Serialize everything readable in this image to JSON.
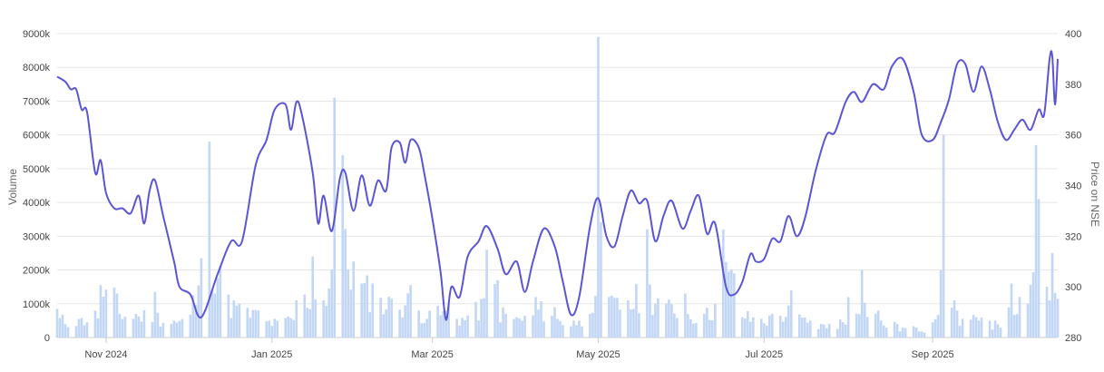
{
  "chart_data": {
    "type": "bar+line",
    "title": "",
    "colors": {
      "volume": "#c2d6f6",
      "price": "#5b55d6",
      "grid": "#e6e6e6"
    },
    "left_axis": {
      "label": "Volume",
      "ylim": [
        0,
        9000000
      ],
      "ticks": [
        0,
        1000000,
        2000000,
        3000000,
        4000000,
        5000000,
        6000000,
        7000000,
        8000000,
        9000000
      ],
      "tick_labels": [
        "0",
        "1000k",
        "2000k",
        "3000k",
        "4000k",
        "5000k",
        "6000k",
        "7000k",
        "8000k",
        "9000k"
      ]
    },
    "right_axis": {
      "label": "Price on NSE",
      "ylim": [
        280,
        400
      ],
      "ticks": [
        280,
        300,
        320,
        340,
        360,
        380,
        400
      ],
      "tick_labels": [
        "280",
        "300",
        "320",
        "340",
        "360",
        "380",
        "400"
      ]
    },
    "x_axis": {
      "range": [
        "2024-10-14",
        "2025-10-17"
      ],
      "ticks": [
        {
          "date": "2024-11-01",
          "label": "Nov 2024"
        },
        {
          "date": "2025-01-01",
          "label": "Jan 2025"
        },
        {
          "date": "2025-03-01",
          "label": "Mar 2025"
        },
        {
          "date": "2025-05-01",
          "label": "May 2025"
        },
        {
          "date": "2025-07-01",
          "label": "Jul 2025"
        },
        {
          "date": "2025-09-01",
          "label": "Sep 2025"
        }
      ]
    },
    "grid": true,
    "legend": "none",
    "series": [
      {
        "kind": "volume",
        "axis": "left",
        "anchors": [
          [
            "2024-10-14",
            850000
          ],
          [
            "2024-10-22",
            550000
          ],
          [
            "2024-10-30",
            1550000
          ],
          [
            "2024-11-05",
            1300000
          ],
          [
            "2024-11-12",
            700000
          ],
          [
            "2024-11-19",
            1350000
          ],
          [
            "2024-11-26",
            500000
          ],
          [
            "2024-12-03",
            1250000
          ],
          [
            "2024-12-06",
            2350000
          ],
          [
            "2024-12-09",
            5800000
          ],
          [
            "2024-12-13",
            2100000
          ],
          [
            "2024-12-20",
            1000000
          ],
          [
            "2024-12-27",
            800000
          ],
          [
            "2025-01-03",
            500000
          ],
          [
            "2025-01-10",
            1100000
          ],
          [
            "2025-01-16",
            2400000
          ],
          [
            "2025-01-20",
            1100000
          ],
          [
            "2025-01-24",
            7100000
          ],
          [
            "2025-01-27",
            5400000
          ],
          [
            "2025-01-31",
            2250000
          ],
          [
            "2025-02-07",
            1600000
          ],
          [
            "2025-02-14",
            1150000
          ],
          [
            "2025-02-21",
            1550000
          ],
          [
            "2025-02-28",
            800000
          ],
          [
            "2025-03-07",
            1000000
          ],
          [
            "2025-03-14",
            650000
          ],
          [
            "2025-03-21",
            2600000
          ],
          [
            "2025-03-25",
            1700000
          ],
          [
            "2025-04-01",
            600000
          ],
          [
            "2025-04-08",
            1200000
          ],
          [
            "2025-04-15",
            900000
          ],
          [
            "2025-04-22",
            500000
          ],
          [
            "2025-04-28",
            700000
          ],
          [
            "2025-05-01",
            8900000
          ],
          [
            "2025-05-05",
            1200000
          ],
          [
            "2025-05-12",
            1100000
          ],
          [
            "2025-05-19",
            3200000
          ],
          [
            "2025-05-26",
            1000000
          ],
          [
            "2025-06-02",
            1300000
          ],
          [
            "2025-06-09",
            700000
          ],
          [
            "2025-06-16",
            3200000
          ],
          [
            "2025-06-20",
            1900000
          ],
          [
            "2025-06-27",
            600000
          ],
          [
            "2025-07-04",
            700000
          ],
          [
            "2025-07-11",
            1400000
          ],
          [
            "2025-07-18",
            500000
          ],
          [
            "2025-07-25",
            400000
          ],
          [
            "2025-08-01",
            1200000
          ],
          [
            "2025-08-06",
            2000000
          ],
          [
            "2025-08-12",
            800000
          ],
          [
            "2025-08-19",
            400000
          ],
          [
            "2025-08-26",
            300000
          ],
          [
            "2025-09-01",
            450000
          ],
          [
            "2025-09-05",
            6000000
          ],
          [
            "2025-09-10",
            800000
          ],
          [
            "2025-09-17",
            600000
          ],
          [
            "2025-09-24",
            500000
          ],
          [
            "2025-09-30",
            1600000
          ],
          [
            "2025-10-06",
            1000000
          ],
          [
            "2025-10-09",
            5700000
          ],
          [
            "2025-10-10",
            4100000
          ],
          [
            "2025-10-13",
            1500000
          ],
          [
            "2025-10-15",
            2500000
          ],
          [
            "2025-10-17",
            1150000
          ]
        ]
      },
      {
        "kind": "price",
        "axis": "right",
        "points": [
          [
            "2024-10-14",
            383
          ],
          [
            "2024-10-17",
            381
          ],
          [
            "2024-10-19",
            378
          ],
          [
            "2024-10-21",
            378
          ],
          [
            "2024-10-23",
            370
          ],
          [
            "2024-10-25",
            369
          ],
          [
            "2024-10-28",
            345
          ],
          [
            "2024-10-30",
            350
          ],
          [
            "2024-11-01",
            337
          ],
          [
            "2024-11-04",
            331
          ],
          [
            "2024-11-07",
            331
          ],
          [
            "2024-11-10",
            329
          ],
          [
            "2024-11-13",
            336
          ],
          [
            "2024-11-15",
            325
          ],
          [
            "2024-11-17",
            338
          ],
          [
            "2024-11-19",
            342
          ],
          [
            "2024-11-22",
            328
          ],
          [
            "2024-11-26",
            310
          ],
          [
            "2024-11-28",
            300
          ],
          [
            "2024-12-02",
            297
          ],
          [
            "2024-12-06",
            288
          ],
          [
            "2024-12-12",
            305
          ],
          [
            "2024-12-17",
            318
          ],
          [
            "2024-12-21",
            318
          ],
          [
            "2024-12-26",
            348
          ],
          [
            "2024-12-30",
            358
          ],
          [
            "2025-01-02",
            370
          ],
          [
            "2025-01-06",
            372
          ],
          [
            "2025-01-08",
            362
          ],
          [
            "2025-01-10",
            373
          ],
          [
            "2025-01-12",
            368
          ],
          [
            "2025-01-16",
            345
          ],
          [
            "2025-01-18",
            325
          ],
          [
            "2025-01-20",
            336
          ],
          [
            "2025-01-23",
            322
          ],
          [
            "2025-01-26",
            343
          ],
          [
            "2025-01-28",
            345
          ],
          [
            "2025-01-31",
            330
          ],
          [
            "2025-02-03",
            344
          ],
          [
            "2025-02-06",
            332
          ],
          [
            "2025-02-09",
            342
          ],
          [
            "2025-02-12",
            338
          ],
          [
            "2025-02-14",
            355
          ],
          [
            "2025-02-17",
            357
          ],
          [
            "2025-02-19",
            349
          ],
          [
            "2025-02-21",
            358
          ],
          [
            "2025-02-24",
            355
          ],
          [
            "2025-02-26",
            345
          ],
          [
            "2025-03-01",
            327
          ],
          [
            "2025-03-04",
            306
          ],
          [
            "2025-03-06",
            287
          ],
          [
            "2025-03-08",
            300
          ],
          [
            "2025-03-11",
            296
          ],
          [
            "2025-03-14",
            312
          ],
          [
            "2025-03-18",
            318
          ],
          [
            "2025-03-21",
            324
          ],
          [
            "2025-03-25",
            315
          ],
          [
            "2025-03-28",
            305
          ],
          [
            "2025-04-01",
            310
          ],
          [
            "2025-04-04",
            298
          ],
          [
            "2025-04-07",
            310
          ],
          [
            "2025-04-11",
            323
          ],
          [
            "2025-04-15",
            316
          ],
          [
            "2025-04-18",
            302
          ],
          [
            "2025-04-21",
            289
          ],
          [
            "2025-04-24",
            296
          ],
          [
            "2025-04-28",
            324
          ],
          [
            "2025-05-01",
            335
          ],
          [
            "2025-05-04",
            320
          ],
          [
            "2025-05-07",
            316
          ],
          [
            "2025-05-10",
            328
          ],
          [
            "2025-05-13",
            338
          ],
          [
            "2025-05-16",
            333
          ],
          [
            "2025-05-19",
            334
          ],
          [
            "2025-05-22",
            318
          ],
          [
            "2025-05-25",
            328
          ],
          [
            "2025-05-28",
            334
          ],
          [
            "2025-06-01",
            323
          ],
          [
            "2025-06-04",
            330
          ],
          [
            "2025-06-07",
            336
          ],
          [
            "2025-06-10",
            321
          ],
          [
            "2025-06-13",
            325
          ],
          [
            "2025-06-17",
            300
          ],
          [
            "2025-06-20",
            297
          ],
          [
            "2025-06-23",
            302
          ],
          [
            "2025-06-26",
            313
          ],
          [
            "2025-06-28",
            310
          ],
          [
            "2025-07-01",
            311
          ],
          [
            "2025-07-04",
            319
          ],
          [
            "2025-07-07",
            318
          ],
          [
            "2025-07-10",
            328
          ],
          [
            "2025-07-13",
            320
          ],
          [
            "2025-07-16",
            327
          ],
          [
            "2025-07-20",
            346
          ],
          [
            "2025-07-24",
            360
          ],
          [
            "2025-07-27",
            361
          ],
          [
            "2025-07-31",
            373
          ],
          [
            "2025-08-03",
            377
          ],
          [
            "2025-08-06",
            373
          ],
          [
            "2025-08-10",
            380
          ],
          [
            "2025-08-14",
            378
          ],
          [
            "2025-08-17",
            387
          ],
          [
            "2025-08-21",
            390
          ],
          [
            "2025-08-25",
            377
          ],
          [
            "2025-08-28",
            360
          ],
          [
            "2025-09-01",
            358
          ],
          [
            "2025-09-04",
            365
          ],
          [
            "2025-09-07",
            374
          ],
          [
            "2025-09-10",
            388
          ],
          [
            "2025-09-13",
            388
          ],
          [
            "2025-09-16",
            377
          ],
          [
            "2025-09-19",
            387
          ],
          [
            "2025-09-22",
            378
          ],
          [
            "2025-09-25",
            365
          ],
          [
            "2025-09-28",
            358
          ],
          [
            "2025-10-01",
            362
          ],
          [
            "2025-10-04",
            366
          ],
          [
            "2025-10-07",
            362
          ],
          [
            "2025-10-10",
            370
          ],
          [
            "2025-10-12",
            368
          ],
          [
            "2025-10-14",
            390
          ],
          [
            "2025-10-15",
            391
          ],
          [
            "2025-10-16",
            372
          ],
          [
            "2025-10-17",
            390
          ]
        ]
      }
    ]
  }
}
